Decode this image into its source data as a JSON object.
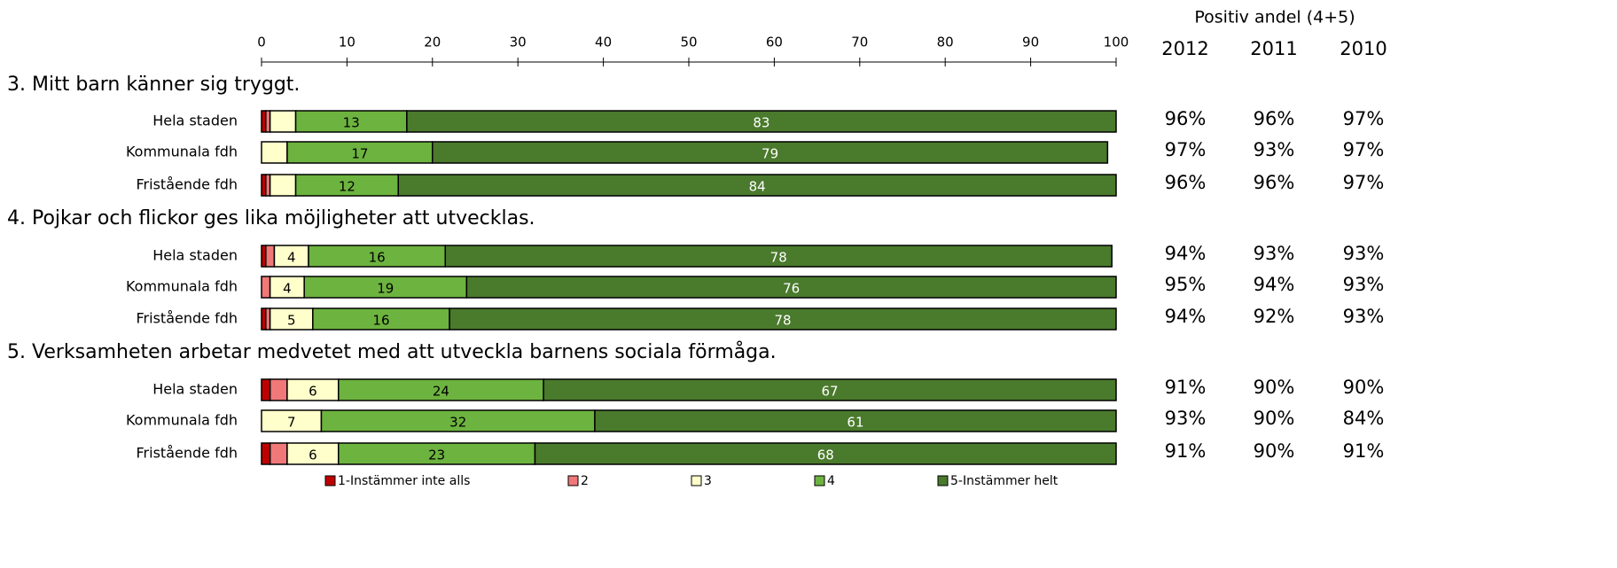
{
  "chart_data": {
    "type": "bar",
    "orientation": "horizontal",
    "stacked": true,
    "xlim": [
      0,
      100
    ],
    "xticks": [
      0,
      10,
      20,
      30,
      40,
      50,
      60,
      70,
      80,
      90,
      100
    ],
    "groups": [
      {
        "title": "3. Mitt barn känner sig tryggt.",
        "categories": [
          "Hela staden",
          "Kommunala fdh",
          "Fristående fdh"
        ]
      },
      {
        "title": "4. Pojkar och flickor ges lika möjligheter att utvecklas.",
        "categories": [
          "Hela staden",
          "Kommunala fdh",
          "Fristående fdh"
        ]
      },
      {
        "title": "5. Verksamheten arbetar medvetet med att utveckla barnens sociala förmåga.",
        "categories": [
          "Hela staden",
          "Kommunala fdh",
          "Fristående fdh"
        ]
      }
    ],
    "series": [
      {
        "name": "1-Instämmer inte alls",
        "color": "#c00000",
        "values": [
          [
            0.5,
            0,
            0.5
          ],
          [
            0.5,
            0,
            0.5
          ],
          [
            1,
            0,
            1
          ]
        ]
      },
      {
        "name": "2",
        "color": "#f07878",
        "values": [
          [
            0.5,
            0,
            0.5
          ],
          [
            1,
            1,
            0.5
          ],
          [
            2,
            0,
            2
          ]
        ]
      },
      {
        "name": "3",
        "color": "#ffffcc",
        "values": [
          [
            3,
            3,
            3
          ],
          [
            4,
            4,
            5
          ],
          [
            6,
            7,
            6
          ]
        ]
      },
      {
        "name": "4",
        "color": "#6db33f",
        "values": [
          [
            13,
            17,
            12
          ],
          [
            16,
            19,
            16
          ],
          [
            24,
            32,
            23
          ]
        ]
      },
      {
        "name": "5-Instämmer helt",
        "color": "#4a7a2c",
        "values": [
          [
            83,
            79,
            84
          ],
          [
            78,
            76,
            78
          ],
          [
            67,
            61,
            68
          ]
        ]
      }
    ]
  },
  "positive_share": {
    "title": "Positiv andel (4+5)",
    "years": [
      "2012",
      "2011",
      "2010"
    ],
    "rows": [
      [
        [
          "96%",
          "96%",
          "97%"
        ],
        [
          "97%",
          "93%",
          "97%"
        ],
        [
          "96%",
          "96%",
          "97%"
        ]
      ],
      [
        [
          "94%",
          "93%",
          "93%"
        ],
        [
          "95%",
          "94%",
          "93%"
        ],
        [
          "94%",
          "92%",
          "93%"
        ]
      ],
      [
        [
          "91%",
          "90%",
          "90%"
        ],
        [
          "93%",
          "90%",
          "84%"
        ],
        [
          "91%",
          "90%",
          "91%"
        ]
      ]
    ]
  }
}
